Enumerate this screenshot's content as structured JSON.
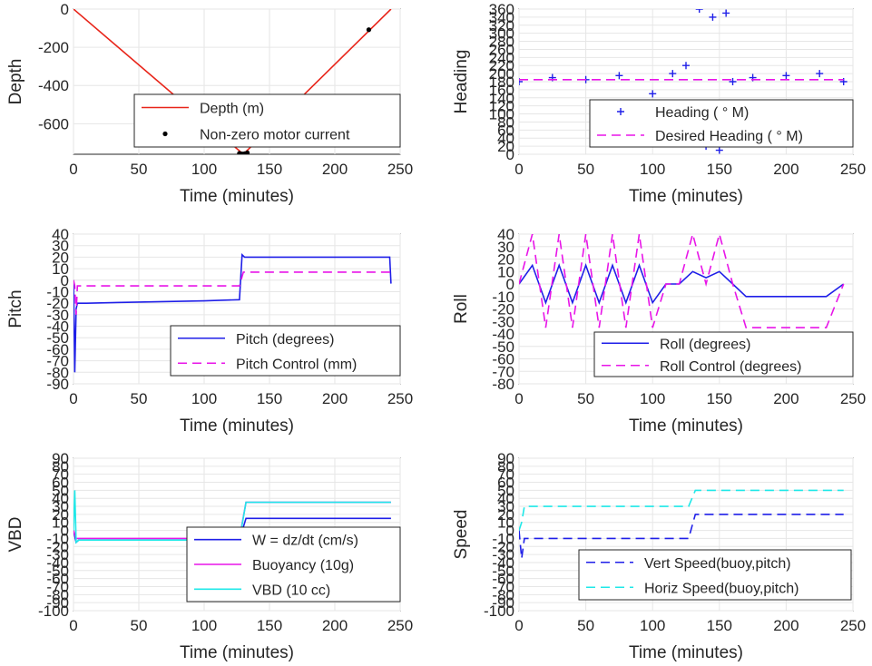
{
  "chart_data": [
    {
      "id": "depth",
      "type": "line",
      "xlabel": "Time (minutes)",
      "ylabel": "Depth",
      "xlim": [
        0,
        250
      ],
      "ylim": [
        -760,
        0
      ],
      "xticks": [
        0,
        50,
        100,
        150,
        200,
        250
      ],
      "yticks": [
        0,
        -200,
        -400,
        -600
      ],
      "grid": true,
      "legend_position": "bottom-right",
      "series": [
        {
          "name": "Depth (m)",
          "style": "line",
          "color": "#e8251a",
          "x": [
            0,
            130,
            243
          ],
          "y": [
            0,
            -760,
            0
          ]
        },
        {
          "name": "Non-zero motor current",
          "style": "dot",
          "color": "#000000",
          "x": [
            127,
            129,
            131,
            133,
            226
          ],
          "y": [
            -755,
            -758,
            -757,
            -752,
            -108
          ]
        }
      ]
    },
    {
      "id": "heading",
      "type": "scatter",
      "xlabel": "Time (minutes)",
      "ylabel": "Heading",
      "xlim": [
        0,
        250
      ],
      "ylim": [
        0,
        360
      ],
      "xticks": [
        0,
        50,
        100,
        150,
        200,
        250
      ],
      "yticks": [
        0,
        20,
        40,
        60,
        80,
        100,
        120,
        140,
        160,
        180,
        200,
        220,
        240,
        260,
        280,
        300,
        320,
        340,
        360
      ],
      "grid": true,
      "legend_position": "bottom-right",
      "series": [
        {
          "name": "Heading (  ° M)",
          "style": "plus",
          "color": "#1f1fe8",
          "x": [
            0,
            25,
            50,
            75,
            100,
            105,
            115,
            125,
            135,
            140,
            145,
            150,
            155,
            160,
            175,
            200,
            225,
            243
          ],
          "y": [
            180,
            190,
            185,
            195,
            150,
            80,
            200,
            220,
            360,
            20,
            340,
            10,
            350,
            180,
            190,
            195,
            200,
            180
          ]
        },
        {
          "name": "Desired Heading (     ° M)",
          "style": "dash",
          "color": "#e815e8",
          "x": [
            0,
            243
          ],
          "y": [
            185,
            185
          ]
        }
      ]
    },
    {
      "id": "pitch",
      "type": "line",
      "xlabel": "Time (minutes)",
      "ylabel": "Pitch",
      "xlim": [
        0,
        250
      ],
      "ylim": [
        -90,
        40
      ],
      "xticks": [
        0,
        50,
        100,
        150,
        200,
        250
      ],
      "yticks": [
        40,
        30,
        20,
        10,
        0,
        -10,
        -20,
        -30,
        -40,
        -50,
        -60,
        -70,
        -80,
        -90
      ],
      "grid": true,
      "legend_position": "bottom-right",
      "series": [
        {
          "name": "Pitch (degrees)",
          "style": "line",
          "color": "#1f1fe8",
          "x": [
            0,
            1,
            2,
            3,
            10,
            50,
            100,
            127,
            129,
            131,
            150,
            200,
            242,
            243
          ],
          "y": [
            0,
            -80,
            -25,
            -20,
            -20,
            -19,
            -18,
            -17,
            22,
            20,
            20,
            20,
            20,
            -3
          ]
        },
        {
          "name": "Pitch Control (mm)",
          "style": "dash",
          "color": "#e815e8",
          "x": [
            0,
            1,
            2,
            3,
            50,
            127,
            130,
            243
          ],
          "y": [
            0,
            -5,
            -30,
            -5,
            -5,
            -5,
            7,
            7
          ]
        }
      ]
    },
    {
      "id": "roll",
      "type": "line",
      "xlabel": "Time (minutes)",
      "ylabel": "Roll",
      "xlim": [
        0,
        250
      ],
      "ylim": [
        -80,
        40
      ],
      "xticks": [
        0,
        50,
        100,
        150,
        200,
        250
      ],
      "yticks": [
        40,
        30,
        20,
        10,
        0,
        -10,
        -20,
        -30,
        -40,
        -50,
        -60,
        -70,
        -80
      ],
      "grid": true,
      "legend_position": "bottom-right",
      "series": [
        {
          "name": "Roll (degrees)",
          "style": "line",
          "color": "#1f1fe8",
          "x": [
            0,
            10,
            20,
            30,
            40,
            50,
            60,
            70,
            80,
            90,
            100,
            110,
            120,
            130,
            140,
            150,
            160,
            170,
            180,
            190,
            200,
            210,
            220,
            230,
            243
          ],
          "y": [
            0,
            15,
            -15,
            15,
            -15,
            15,
            -15,
            15,
            -15,
            15,
            -15,
            0,
            0,
            10,
            5,
            10,
            0,
            -10,
            -10,
            -10,
            -10,
            -10,
            -10,
            -10,
            0
          ]
        },
        {
          "name": "Roll Control (degrees)",
          "style": "dash",
          "color": "#e815e8",
          "x": [
            0,
            10,
            20,
            30,
            40,
            50,
            60,
            70,
            80,
            90,
            100,
            110,
            120,
            130,
            140,
            150,
            160,
            170,
            180,
            190,
            200,
            210,
            220,
            230,
            243
          ],
          "y": [
            0,
            40,
            -35,
            40,
            -35,
            40,
            -35,
            40,
            -35,
            40,
            -35,
            0,
            0,
            40,
            0,
            40,
            0,
            -35,
            -35,
            -35,
            -35,
            -35,
            -35,
            -35,
            0
          ]
        }
      ]
    },
    {
      "id": "vbd",
      "type": "line",
      "xlabel": "Time (minutes)",
      "ylabel": "VBD",
      "xlim": [
        0,
        250
      ],
      "ylim": [
        -100,
        90
      ],
      "xticks": [
        0,
        50,
        100,
        150,
        200,
        250
      ],
      "yticks": [
        90,
        80,
        70,
        60,
        50,
        40,
        30,
        20,
        10,
        0,
        -10,
        -20,
        -30,
        -40,
        -50,
        -60,
        -70,
        -80,
        -90,
        -100
      ],
      "ytick_labels": [
        "90",
        "80",
        "70",
        "60",
        "50",
        "40",
        "30",
        "20",
        "10",
        "0",
        "-10",
        "-20",
        "-30",
        "-40",
        "-50",
        "-60",
        "-70",
        "-80",
        "-90",
        "-100"
      ],
      "grid": true,
      "legend_position": "bottom-right",
      "series": [
        {
          "name": "W = dz/dt (cm/s)",
          "style": "line",
          "color": "#1f1fe8",
          "x": [
            0,
            2,
            4,
            50,
            100,
            127,
            132,
            150,
            200,
            243
          ],
          "y": [
            0,
            -15,
            -12,
            -12,
            -12,
            -12,
            15,
            15,
            15,
            15
          ]
        },
        {
          "name": "Buoyancy (10g)",
          "style": "line",
          "color": "#e815e8",
          "x": [
            0,
            2,
            4,
            50,
            100,
            127,
            132,
            150,
            200,
            243
          ],
          "y": [
            0,
            -10,
            -10,
            -10,
            -10,
            -10,
            35,
            35,
            35,
            35
          ]
        },
        {
          "name": "VBD (10 cc)",
          "style": "line",
          "color": "#1fe8e8",
          "x": [
            0,
            1,
            2,
            4,
            50,
            100,
            127,
            132,
            150,
            200,
            243
          ],
          "y": [
            0,
            50,
            -15,
            -12,
            -12,
            -12,
            -12,
            35,
            35,
            35,
            35
          ]
        }
      ]
    },
    {
      "id": "speed",
      "type": "line",
      "xlabel": "Time (minutes)",
      "ylabel": "Speed",
      "xlim": [
        0,
        250
      ],
      "ylim": [
        -100,
        90
      ],
      "xticks": [
        0,
        50,
        100,
        150,
        200,
        250
      ],
      "yticks": [
        90,
        80,
        70,
        60,
        50,
        40,
        30,
        20,
        10,
        0,
        -10,
        -20,
        -30,
        -40,
        -50,
        -60,
        -70,
        -80,
        -90,
        -100
      ],
      "ytick_labels": [
        "90",
        "80",
        "70",
        "60",
        "50",
        "40",
        "30",
        "20",
        "10",
        "0",
        "-10",
        "-20",
        "-30",
        "-40",
        "-50",
        "-60",
        "-70",
        "-80",
        "-90",
        "-100"
      ],
      "grid": true,
      "legend_position": "bottom-right",
      "series": [
        {
          "name": "Vert Speed(buoy,pitch)",
          "style": "dash",
          "color": "#1f1fe8",
          "x": [
            0,
            2,
            4,
            50,
            100,
            127,
            132,
            150,
            200,
            243
          ],
          "y": [
            0,
            -35,
            -10,
            -10,
            -10,
            -10,
            20,
            20,
            20,
            20
          ]
        },
        {
          "name": "Horiz Speed(buoy,pitch)",
          "style": "dash",
          "color": "#1fe8e8",
          "x": [
            0,
            2,
            4,
            50,
            100,
            127,
            132,
            150,
            200,
            243
          ],
          "y": [
            0,
            10,
            30,
            30,
            30,
            30,
            50,
            50,
            50,
            50
          ]
        }
      ]
    }
  ]
}
